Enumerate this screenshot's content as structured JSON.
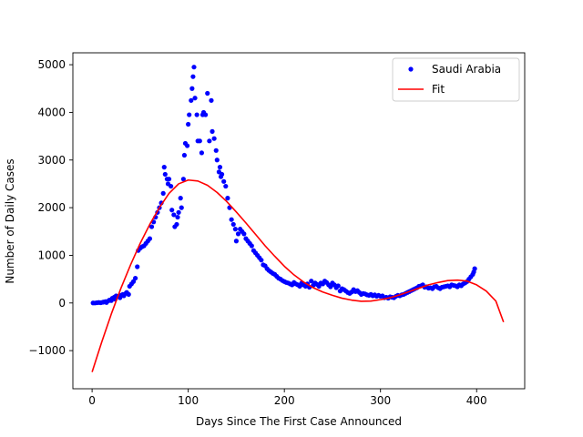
{
  "chart_data": {
    "type": "scatter",
    "title": "",
    "xlabel": "Days Since The First Case Announced",
    "ylabel": "Number of Daily Cases",
    "xlim": [
      -20,
      450
    ],
    "ylim": [
      -1800,
      5250
    ],
    "x_ticks": [
      0,
      100,
      200,
      300,
      400
    ],
    "y_ticks": [
      -1000,
      0,
      1000,
      2000,
      3000,
      4000,
      5000
    ],
    "grid": false,
    "legend": {
      "placement": "top-right",
      "entries": [
        "Saudi Arabia",
        "Fit"
      ]
    },
    "series": [
      {
        "name": "Saudi Arabia",
        "kind": "scatter",
        "color": "#0000ff",
        "points": [
          [
            1,
            1
          ],
          [
            3,
            0
          ],
          [
            5,
            5
          ],
          [
            7,
            10
          ],
          [
            9,
            5
          ],
          [
            11,
            15
          ],
          [
            12,
            20
          ],
          [
            14,
            30
          ],
          [
            15,
            10
          ],
          [
            17,
            45
          ],
          [
            18,
            60
          ],
          [
            20,
            50
          ],
          [
            21,
            100
          ],
          [
            23,
            120
          ],
          [
            24,
            80
          ],
          [
            25,
            150
          ],
          [
            27,
            140
          ],
          [
            29,
            110
          ],
          [
            30,
            160
          ],
          [
            32,
            180
          ],
          [
            33,
            150
          ],
          [
            35,
            200
          ],
          [
            36,
            220
          ],
          [
            38,
            180
          ],
          [
            39,
            350
          ],
          [
            41,
            400
          ],
          [
            43,
            450
          ],
          [
            45,
            520
          ],
          [
            47,
            760
          ],
          [
            48,
            1100
          ],
          [
            50,
            1150
          ],
          [
            52,
            1180
          ],
          [
            54,
            1200
          ],
          [
            56,
            1250
          ],
          [
            58,
            1300
          ],
          [
            60,
            1350
          ],
          [
            62,
            1600
          ],
          [
            64,
            1700
          ],
          [
            66,
            1800
          ],
          [
            68,
            1900
          ],
          [
            70,
            2000
          ],
          [
            72,
            2100
          ],
          [
            74,
            2300
          ],
          [
            75,
            2850
          ],
          [
            76,
            2700
          ],
          [
            78,
            2600
          ],
          [
            79,
            2500
          ],
          [
            80,
            2600
          ],
          [
            82,
            2450
          ],
          [
            83,
            1950
          ],
          [
            85,
            1850
          ],
          [
            86,
            1600
          ],
          [
            88,
            1650
          ],
          [
            89,
            1800
          ],
          [
            90,
            1900
          ],
          [
            92,
            2200
          ],
          [
            93,
            2000
          ],
          [
            95,
            2600
          ],
          [
            96,
            3100
          ],
          [
            97,
            3350
          ],
          [
            99,
            3300
          ],
          [
            100,
            3750
          ],
          [
            101,
            3950
          ],
          [
            103,
            4250
          ],
          [
            104,
            4500
          ],
          [
            105,
            4750
          ],
          [
            106,
            4950
          ],
          [
            107,
            4300
          ],
          [
            109,
            3950
          ],
          [
            110,
            3400
          ],
          [
            112,
            3400
          ],
          [
            114,
            3150
          ],
          [
            115,
            3950
          ],
          [
            116,
            4000
          ],
          [
            118,
            3950
          ],
          [
            120,
            4400
          ],
          [
            122,
            3400
          ],
          [
            124,
            4250
          ],
          [
            125,
            3600
          ],
          [
            127,
            3450
          ],
          [
            129,
            3200
          ],
          [
            130,
            3000
          ],
          [
            132,
            2750
          ],
          [
            133,
            2850
          ],
          [
            134,
            2650
          ],
          [
            135,
            2700
          ],
          [
            137,
            2550
          ],
          [
            139,
            2450
          ],
          [
            141,
            2200
          ],
          [
            143,
            2000
          ],
          [
            145,
            1750
          ],
          [
            147,
            1650
          ],
          [
            149,
            1550
          ],
          [
            150,
            1300
          ],
          [
            152,
            1450
          ],
          [
            154,
            1550
          ],
          [
            156,
            1500
          ],
          [
            158,
            1450
          ],
          [
            160,
            1350
          ],
          [
            162,
            1300
          ],
          [
            164,
            1250
          ],
          [
            166,
            1200
          ],
          [
            168,
            1100
          ],
          [
            170,
            1050
          ],
          [
            172,
            1000
          ],
          [
            174,
            950
          ],
          [
            176,
            900
          ],
          [
            178,
            800
          ],
          [
            180,
            780
          ],
          [
            182,
            720
          ],
          [
            184,
            680
          ],
          [
            186,
            650
          ],
          [
            188,
            620
          ],
          [
            190,
            600
          ],
          [
            192,
            560
          ],
          [
            194,
            520
          ],
          [
            196,
            500
          ],
          [
            198,
            470
          ],
          [
            200,
            450
          ],
          [
            202,
            430
          ],
          [
            204,
            420
          ],
          [
            206,
            400
          ],
          [
            208,
            380
          ],
          [
            210,
            430
          ],
          [
            212,
            400
          ],
          [
            214,
            380
          ],
          [
            216,
            350
          ],
          [
            218,
            420
          ],
          [
            220,
            380
          ],
          [
            222,
            350
          ],
          [
            224,
            400
          ],
          [
            226,
            330
          ],
          [
            228,
            460
          ],
          [
            230,
            370
          ],
          [
            232,
            420
          ],
          [
            234,
            390
          ],
          [
            236,
            350
          ],
          [
            238,
            420
          ],
          [
            240,
            400
          ],
          [
            242,
            460
          ],
          [
            244,
            430
          ],
          [
            246,
            380
          ],
          [
            248,
            340
          ],
          [
            250,
            420
          ],
          [
            252,
            380
          ],
          [
            254,
            320
          ],
          [
            256,
            360
          ],
          [
            258,
            250
          ],
          [
            260,
            300
          ],
          [
            262,
            280
          ],
          [
            264,
            250
          ],
          [
            266,
            220
          ],
          [
            268,
            200
          ],
          [
            270,
            230
          ],
          [
            272,
            280
          ],
          [
            274,
            240
          ],
          [
            276,
            260
          ],
          [
            278,
            220
          ],
          [
            280,
            180
          ],
          [
            282,
            200
          ],
          [
            284,
            190
          ],
          [
            286,
            170
          ],
          [
            288,
            160
          ],
          [
            290,
            180
          ],
          [
            292,
            150
          ],
          [
            294,
            170
          ],
          [
            296,
            140
          ],
          [
            298,
            160
          ],
          [
            300,
            140
          ],
          [
            302,
            150
          ],
          [
            304,
            110
          ],
          [
            306,
            120
          ],
          [
            308,
            100
          ],
          [
            310,
            130
          ],
          [
            312,
            120
          ],
          [
            314,
            110
          ],
          [
            316,
            140
          ],
          [
            318,
            160
          ],
          [
            320,
            150
          ],
          [
            322,
            170
          ],
          [
            324,
            180
          ],
          [
            326,
            200
          ],
          [
            328,
            220
          ],
          [
            330,
            240
          ],
          [
            332,
            260
          ],
          [
            334,
            280
          ],
          [
            336,
            300
          ],
          [
            338,
            320
          ],
          [
            340,
            350
          ],
          [
            342,
            360
          ],
          [
            344,
            380
          ],
          [
            346,
            330
          ],
          [
            348,
            340
          ],
          [
            350,
            310
          ],
          [
            352,
            320
          ],
          [
            354,
            300
          ],
          [
            356,
            340
          ],
          [
            358,
            350
          ],
          [
            360,
            320
          ],
          [
            362,
            300
          ],
          [
            364,
            330
          ],
          [
            366,
            340
          ],
          [
            368,
            350
          ],
          [
            370,
            360
          ],
          [
            372,
            340
          ],
          [
            374,
            380
          ],
          [
            376,
            370
          ],
          [
            378,
            360
          ],
          [
            380,
            340
          ],
          [
            382,
            380
          ],
          [
            384,
            360
          ],
          [
            386,
            400
          ],
          [
            388,
            420
          ],
          [
            390,
            450
          ],
          [
            392,
            500
          ],
          [
            394,
            550
          ],
          [
            396,
            600
          ],
          [
            397,
            650
          ],
          [
            398,
            720
          ]
        ]
      },
      {
        "name": "Fit",
        "kind": "line",
        "color": "#ff0000",
        "points": [
          [
            0,
            -1450
          ],
          [
            10,
            -820
          ],
          [
            20,
            -230
          ],
          [
            30,
            310
          ],
          [
            40,
            800
          ],
          [
            50,
            1250
          ],
          [
            60,
            1650
          ],
          [
            70,
            2000
          ],
          [
            80,
            2300
          ],
          [
            90,
            2500
          ],
          [
            100,
            2580
          ],
          [
            110,
            2560
          ],
          [
            120,
            2470
          ],
          [
            130,
            2320
          ],
          [
            140,
            2130
          ],
          [
            150,
            1910
          ],
          [
            160,
            1680
          ],
          [
            170,
            1440
          ],
          [
            180,
            1200
          ],
          [
            190,
            980
          ],
          [
            200,
            770
          ],
          [
            210,
            590
          ],
          [
            220,
            440
          ],
          [
            230,
            320
          ],
          [
            240,
            230
          ],
          [
            250,
            160
          ],
          [
            260,
            100
          ],
          [
            270,
            60
          ],
          [
            280,
            35
          ],
          [
            290,
            40
          ],
          [
            300,
            70
          ],
          [
            310,
            110
          ],
          [
            320,
            170
          ],
          [
            330,
            240
          ],
          [
            340,
            310
          ],
          [
            350,
            380
          ],
          [
            360,
            430
          ],
          [
            370,
            470
          ],
          [
            380,
            480
          ],
          [
            390,
            460
          ],
          [
            400,
            380
          ],
          [
            410,
            250
          ],
          [
            420,
            40
          ],
          [
            428,
            -400
          ]
        ]
      }
    ]
  }
}
